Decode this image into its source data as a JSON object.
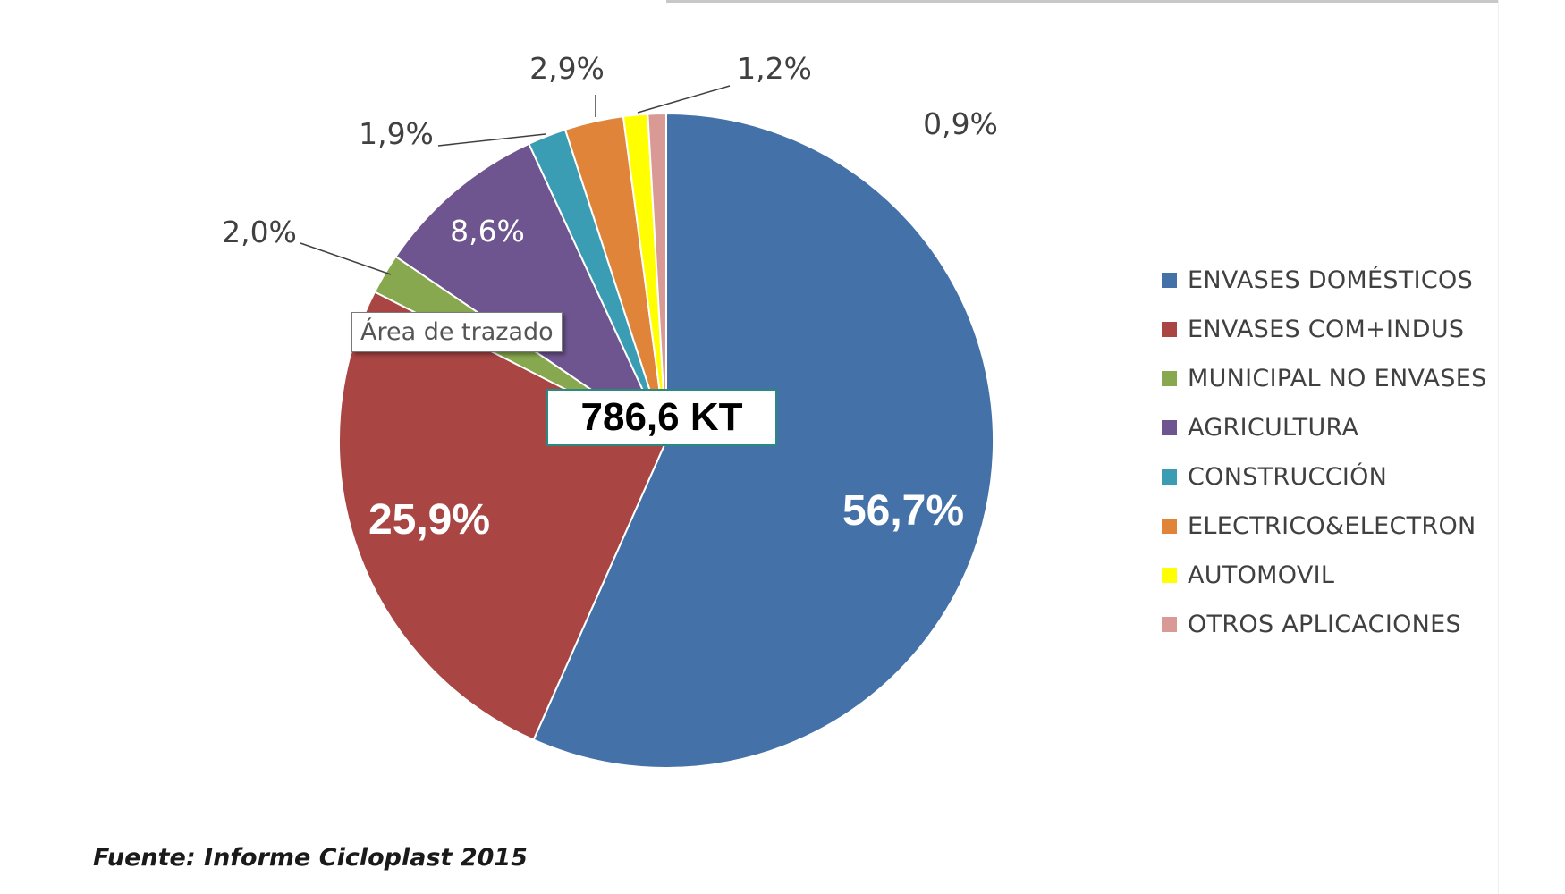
{
  "chart_data": {
    "type": "pie",
    "total_label": "786,6 KT",
    "categories": [
      "ENVASES DOMÉSTICOS",
      "ENVASES COM+INDUS",
      "MUNICIPAL NO ENVASES",
      "AGRICULTURA",
      "CONSTRUCCIÓN",
      "ELECTRICO&ELECTRON",
      "AUTOMOVIL",
      "OTROS APLICACIONES"
    ],
    "values": [
      56.7,
      25.9,
      2.0,
      8.6,
      1.9,
      2.9,
      1.2,
      0.9
    ],
    "data_labels": [
      "56,7%",
      "25,9%",
      "2,0%",
      "8,6%",
      "1,9%",
      "2,9%",
      "1,2%",
      "0,9%"
    ],
    "colors": [
      "#4472A8",
      "#A94543",
      "#87A84E",
      "#6E5590",
      "#3B9DB3",
      "#E0843A",
      "#FFFF00",
      "#D99A96"
    ],
    "start_angle_deg": 0,
    "direction": "clockwise",
    "legend_position": "right"
  },
  "tooltip": "Área de trazado",
  "source": "Fuente: Informe Cicloplast 2015"
}
